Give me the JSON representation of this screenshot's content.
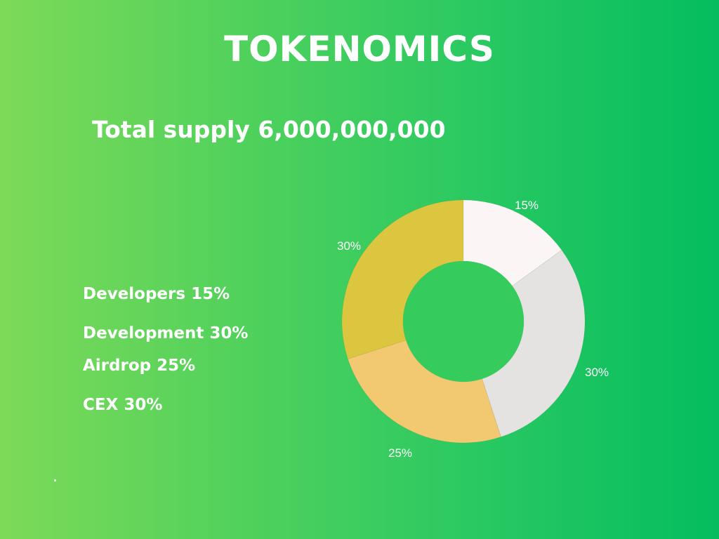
{
  "page": {
    "title": "TOKENOMICS",
    "subtitle": "Total supply 6,000,000,000"
  },
  "legend": [
    "Developers 15%",
    "Development 30%",
    "Airdrop 25%",
    "CEX 30%"
  ],
  "chart_data": {
    "type": "pie",
    "variant": "donut",
    "values": [
      15,
      30,
      25,
      30
    ],
    "data_labels": [
      "15%",
      "30%",
      "25%",
      "30%"
    ],
    "colors": [
      "#fbf5f5",
      "#e4e3e1",
      "#f2c871",
      "#dcc640"
    ],
    "hole_color": "#35cc5d",
    "start": "top",
    "direction": "clockwise"
  }
}
